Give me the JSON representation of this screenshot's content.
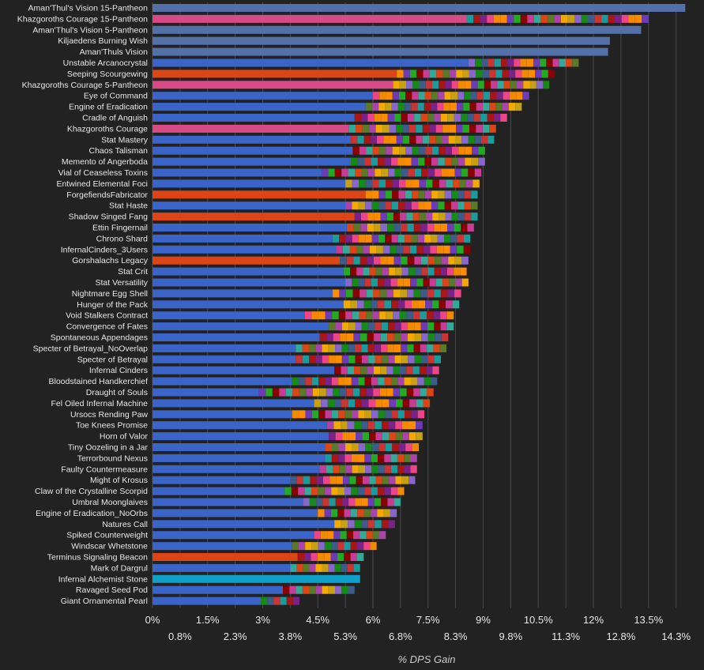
{
  "chart_data": {
    "type": "bar",
    "orientation": "horizontal",
    "stacked": true,
    "xlabel": "% DPS Gain",
    "xlim": [
      0,
      14.5
    ],
    "grid": true,
    "ticks_row1": [
      "0%",
      "1.5%",
      "3%",
      "4.5%",
      "6%",
      "7.5%",
      "9%",
      "10.5%",
      "12%",
      "13.5%"
    ],
    "ticks_row2": [
      "0.8%",
      "2.3%",
      "3.8%",
      "5.3%",
      "6.8%",
      "8.3%",
      "9.8%",
      "11.3%",
      "12.8%",
      "14.3%"
    ],
    "tick_values_row1": [
      0,
      1.5,
      3,
      4.5,
      6,
      7.5,
      9,
      10.5,
      12,
      13.5
    ],
    "tick_values_row2": [
      0.75,
      2.25,
      3.75,
      5.25,
      6.75,
      8.25,
      9.75,
      11.25,
      12.75,
      14.25
    ],
    "colors": {
      "blue": "#3a64c8",
      "slate": "#5470a8",
      "pink": "#d64a86",
      "orange_red": "#dc4616",
      "cyan": "#0ea0c8",
      "segments": [
        "#dc4616",
        "#f2a900",
        "#168a16",
        "#1a9c9c",
        "#ee4488",
        "#6d3ab8",
        "#c83c96",
        "#5a7a2a",
        "#c8a014",
        "#3e5c8a",
        "#a81616",
        "#f28a00",
        "#22aa22",
        "#33aa99",
        "#aa44aa",
        "#8866cc",
        "#cc3333",
        "#7a2288",
        "#ff8c00",
        "#8b0000"
      ]
    },
    "categories": [
      "Aman'Thul's Vision 15-Pantheon",
      "Khazgoroths Courage 15-Pantheon",
      "Aman'Thul's Vision 5-Pantheon",
      "Kiljaedens Burning Wish",
      "Aman'Thuls Vision",
      "Unstable Arcanocrystal",
      "Seeping Scourgewing",
      "Khazgoroths Courage 5-Pantheon",
      "Eye of Command",
      "Engine of Eradication",
      "Cradle of Anguish",
      "Khazgoroths Courage",
      "Stat Mastery",
      "Chaos Talisman",
      "Memento of Angerboda",
      "Vial of Ceaseless Toxins",
      "Entwined Elemental Foci",
      "ForgefiendsFabricator",
      "Stat Haste",
      "Shadow Singed Fang",
      "Ettin Fingernail",
      "Chrono Shard",
      "InfernalCinders_3Users",
      "Gorshalachs Legacy",
      "Stat Crit",
      "Stat Versatility",
      "Nightmare Egg Shell",
      "Hunger of the Pack",
      "Void Stalkers Contract",
      "Convergence of Fates",
      "Spontaneous Appendages",
      "Specter of Betrayal_NoOverlap",
      "Specter of Betrayal",
      "Infernal Cinders",
      "Bloodstained Handkerchief",
      "Draught of Souls",
      "Fel Oiled Infernal Machine",
      "Ursocs Rending Paw",
      "Toe Knees Promise",
      "Horn of Valor",
      "Tiny Oozeling in a Jar",
      "Terrorbound Nexus",
      "Faulty Countermeasure",
      "Might of Krosus",
      "Claw of the Crystalline Scorpid",
      "Umbral Moonglaives",
      "Engine of Eradication_NoOrbs",
      "Natures Call",
      "Spiked Counterweight",
      "Windscar Whetstone",
      "Terminus Signaling Beacon",
      "Mark of Dargrul",
      "Infernal Alchemist Stone",
      "Ravaged Seed Pod",
      "Giant Ornamental Pearl"
    ],
    "base_color": [
      "slate",
      "pink",
      "slate",
      "slate",
      "slate",
      "blue",
      "orange_red",
      "pink",
      "blue",
      "blue",
      "blue",
      "pink",
      "blue",
      "blue",
      "blue",
      "blue",
      "blue",
      "orange_red",
      "blue",
      "orange_red",
      "blue",
      "blue",
      "blue",
      "orange_red",
      "blue",
      "blue",
      "blue",
      "blue",
      "blue",
      "blue",
      "blue",
      "blue",
      "blue",
      "blue",
      "blue",
      "blue",
      "blue",
      "blue",
      "blue",
      "blue",
      "blue",
      "blue",
      "blue",
      "blue",
      "blue",
      "blue",
      "blue",
      "blue",
      "blue",
      "blue",
      "orange_red",
      "blue",
      "cyan",
      "blue",
      "blue"
    ],
    "base_values": [
      14.5,
      8.55,
      13.3,
      12.45,
      12.4,
      8.6,
      6.65,
      6.55,
      6.0,
      5.8,
      5.5,
      5.35,
      5.4,
      5.45,
      5.4,
      4.6,
      5.25,
      5.8,
      5.25,
      5.5,
      5.3,
      4.9,
      5.0,
      5.1,
      5.2,
      5.25,
      4.9,
      5.2,
      4.15,
      4.8,
      4.55,
      3.9,
      3.9,
      4.95,
      3.8,
      2.9,
      4.4,
      3.8,
      4.75,
      4.8,
      4.7,
      4.7,
      4.55,
      3.75,
      3.6,
      4.1,
      4.5,
      4.95,
      4.4,
      3.8,
      3.95,
      3.75,
      5.65,
      3.55,
      2.95
    ],
    "total_values": [
      14.5,
      13.5,
      13.3,
      12.45,
      12.4,
      11.6,
      10.95,
      10.8,
      10.25,
      10.05,
      9.65,
      9.35,
      9.3,
      9.05,
      9.05,
      8.95,
      8.9,
      8.85,
      8.85,
      8.85,
      8.75,
      8.65,
      8.65,
      8.6,
      8.55,
      8.6,
      8.4,
      8.35,
      8.2,
      8.2,
      8.05,
      8.0,
      7.85,
      7.8,
      7.75,
      7.65,
      7.55,
      7.4,
      7.35,
      7.35,
      7.25,
      7.2,
      7.2,
      7.15,
      6.85,
      6.75,
      6.65,
      6.6,
      6.35,
      6.1,
      5.75,
      5.65,
      5.65,
      5.5,
      4.0
    ]
  }
}
